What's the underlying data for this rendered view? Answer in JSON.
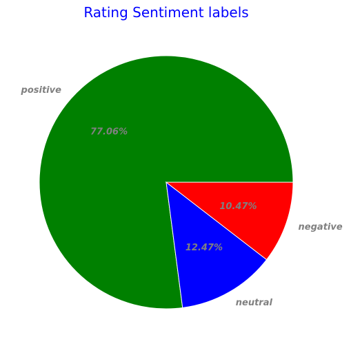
{
  "chart_data": {
    "type": "pie",
    "title": "Rating Sentiment labels",
    "categories": [
      "positive",
      "neutral",
      "negative"
    ],
    "values": [
      77.06,
      12.47,
      10.47
    ],
    "value_labels": [
      "77.06%",
      "12.47%",
      "10.47%"
    ],
    "colors": [
      "#008000",
      "#0000ff",
      "#ff0000"
    ],
    "start_angle_deg": 0,
    "direction": "counterclockwise",
    "title_color": "#0000ff",
    "label_color": "#808080",
    "wedge_edge_color": "#ffffff"
  }
}
